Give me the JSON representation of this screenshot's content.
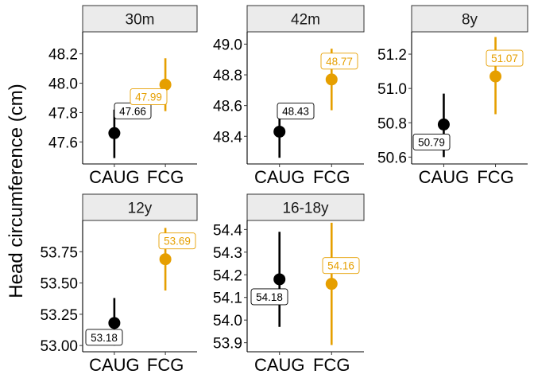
{
  "chart_data": {
    "type": "pointrange-facets",
    "ylabel": "Head circumference (cm)",
    "categories": [
      "CAUG",
      "FCG"
    ],
    "colors": {
      "CAUG": "#000000",
      "FCG": "#E69F00"
    },
    "facets": [
      {
        "label": "30m",
        "ylim": [
          47.45,
          48.35
        ],
        "yticks": [
          47.6,
          47.8,
          48.0,
          48.2
        ],
        "tick_labels": [
          "47.6",
          "47.8",
          "48.0",
          "48.2"
        ],
        "points": [
          {
            "group": "CAUG",
            "mean": 47.66,
            "low": 47.49,
            "high": 47.82,
            "label": "47.66"
          },
          {
            "group": "FCG",
            "mean": 47.99,
            "low": 47.81,
            "high": 48.17,
            "label": "47.99"
          }
        ]
      },
      {
        "label": "42m",
        "ylim": [
          48.22,
          49.08
        ],
        "yticks": [
          48.4,
          48.6,
          48.8,
          49.0
        ],
        "tick_labels": [
          "48.4",
          "48.6",
          "48.8",
          "49.0"
        ],
        "points": [
          {
            "group": "CAUG",
            "mean": 48.43,
            "low": 48.26,
            "high": 48.6,
            "label": "48.43"
          },
          {
            "group": "FCG",
            "mean": 48.77,
            "low": 48.57,
            "high": 48.97,
            "label": "48.77"
          }
        ]
      },
      {
        "label": "8y",
        "ylim": [
          50.56,
          51.33
        ],
        "yticks": [
          50.6,
          50.8,
          51.0,
          51.2
        ],
        "tick_labels": [
          "50.6",
          "50.8",
          "51.0",
          "51.2"
        ],
        "points": [
          {
            "group": "CAUG",
            "mean": 50.79,
            "low": 50.6,
            "high": 50.97,
            "label": "50.79"
          },
          {
            "group": "FCG",
            "mean": 51.07,
            "low": 50.85,
            "high": 51.3,
            "label": "51.07"
          }
        ]
      },
      {
        "label": "12y",
        "ylim": [
          52.95,
          54.0
        ],
        "yticks": [
          53.0,
          53.25,
          53.5,
          53.75
        ],
        "tick_labels": [
          "53.00",
          "53.25",
          "53.50",
          "53.75"
        ],
        "points": [
          {
            "group": "CAUG",
            "mean": 53.18,
            "low": 53.0,
            "high": 53.38,
            "label": "53.18"
          },
          {
            "group": "FCG",
            "mean": 53.69,
            "low": 53.44,
            "high": 53.94,
            "label": "53.69"
          }
        ]
      },
      {
        "label": "16-18y",
        "ylim": [
          53.86,
          54.44
        ],
        "yticks": [
          53.9,
          54.0,
          54.1,
          54.2,
          54.3,
          54.4
        ],
        "tick_labels": [
          "53.9",
          "54.0",
          "54.1",
          "54.2",
          "54.3",
          "54.4"
        ],
        "points": [
          {
            "group": "CAUG",
            "mean": 54.18,
            "low": 53.97,
            "high": 54.39,
            "label": "54.18"
          },
          {
            "group": "FCG",
            "mean": 54.16,
            "low": 53.89,
            "high": 54.43,
            "label": "54.16"
          }
        ]
      }
    ]
  }
}
